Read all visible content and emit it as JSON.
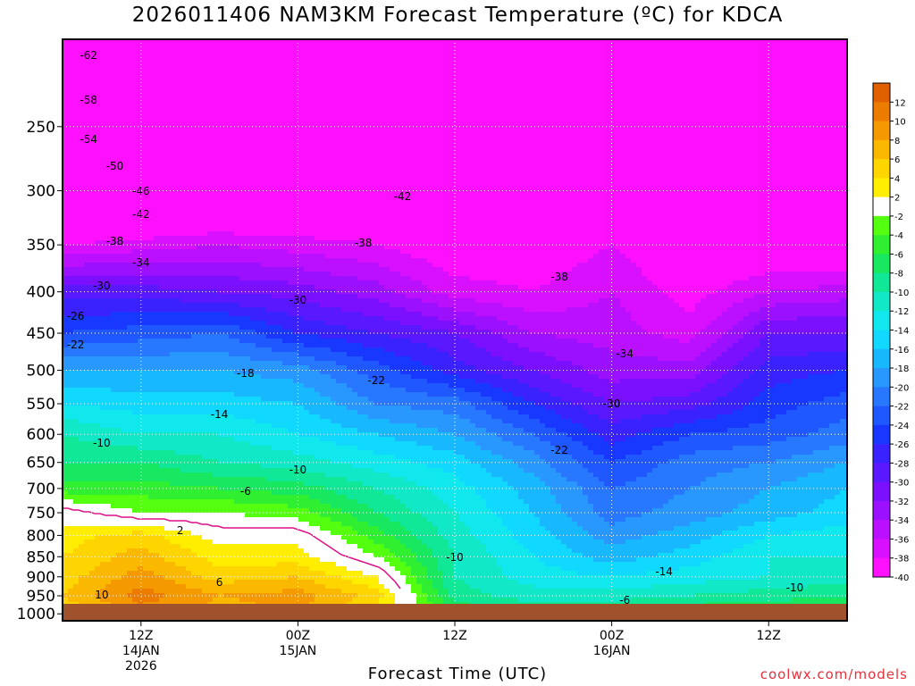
{
  "chart_data": {
    "type": "heatmap",
    "title": "2026011406 NAM3KM Forecast Temperature (ºC) for KDCA",
    "xlabel": "Forecast Time (UTC)",
    "ylabel": "",
    "y_axis": {
      "unit": "hPa",
      "scale": "log-pressure",
      "range": [
        1020,
        195
      ],
      "ticks": [
        250,
        300,
        350,
        400,
        450,
        500,
        550,
        600,
        650,
        700,
        750,
        800,
        850,
        900,
        950,
        1000
      ]
    },
    "x_axis": {
      "ticks": [
        {
          "hour": 6,
          "lines": [
            "12Z",
            "14JAN",
            "2026"
          ]
        },
        {
          "hour": 18,
          "lines": [
            "00Z",
            "15JAN"
          ]
        },
        {
          "hour": 30,
          "lines": [
            "12Z"
          ]
        },
        {
          "hour": 42,
          "lines": [
            "00Z",
            "16JAN"
          ]
        },
        {
          "hour": 54,
          "lines": [
            "12Z"
          ]
        }
      ],
      "range_hours": [
        0,
        60
      ]
    },
    "grid": "dotted",
    "colorbar": {
      "placement": "right",
      "labels": [
        "12",
        "10",
        "8",
        "6",
        "4",
        "2",
        "-2",
        "-4",
        "-6",
        "-8",
        "-10",
        "-12",
        "-14",
        "-16",
        "-18",
        "-20",
        "-22",
        "-24",
        "-26",
        "-28",
        "-30",
        "-32",
        "-34",
        "-36",
        "-38",
        "-40"
      ],
      "colors": [
        "#e06000",
        "#ec7c00",
        "#f49a00",
        "#fab800",
        "#ffd500",
        "#ffee00",
        "#ffffff",
        "#55ff10",
        "#30ee30",
        "#18e860",
        "#10e898",
        "#10e8c8",
        "#10e8ee",
        "#10d8ff",
        "#18b8ff",
        "#2898ff",
        "#2878ff",
        "#2058ff",
        "#1838ff",
        "#3a22ff",
        "#5a18ff",
        "#7a10ff",
        "#9a10ff",
        "#bb10ff",
        "#d810ff",
        "#ff10ff"
      ]
    },
    "ground_color": "#a0522d",
    "zero_line_color": "#dd1188",
    "columns_hours": [
      0,
      6,
      12,
      18,
      24,
      30,
      36,
      42,
      48,
      54,
      60
    ],
    "levels_hpa": [
      1000,
      950,
      900,
      850,
      800,
      750,
      700,
      650,
      600,
      550,
      500,
      450,
      400,
      350,
      300,
      250,
      200
    ],
    "temperature_c": [
      [
        4,
        9,
        7,
        8,
        4,
        -6,
        -8,
        -8,
        -6,
        -6,
        -4
      ],
      [
        6,
        11,
        8,
        9,
        5,
        -9,
        -11,
        -11,
        -10,
        -9,
        -8
      ],
      [
        5,
        9,
        5,
        6,
        2,
        -10,
        -13,
        -14,
        -13,
        -12,
        -11
      ],
      [
        4,
        7,
        3,
        3,
        -2,
        -10,
        -14,
        -17,
        -15,
        -12,
        -12
      ],
      [
        3,
        5,
        1,
        1,
        -5,
        -11,
        -15,
        -19,
        -17,
        -14,
        -13
      ],
      [
        1,
        -2,
        -2,
        -3,
        -8,
        -12,
        -16,
        -21,
        -19,
        -17,
        -15
      ],
      [
        -5,
        -5,
        -6,
        -7,
        -10,
        -13,
        -17,
        -22,
        -20,
        -18,
        -16
      ],
      [
        -8,
        -8,
        -10,
        -11,
        -13,
        -15,
        -19,
        -24,
        -21,
        -20,
        -18
      ],
      [
        -10,
        -12,
        -12,
        -14,
        -16,
        -18,
        -22,
        -27,
        -24,
        -23,
        -21
      ],
      [
        -14,
        -15,
        -15,
        -16,
        -20,
        -21,
        -26,
        -30,
        -29,
        -25,
        -23
      ],
      [
        -18,
        -18,
        -18,
        -19,
        -23,
        -27,
        -30,
        -33,
        -33,
        -27,
        -26
      ],
      [
        -24,
        -23,
        -22,
        -26,
        -28,
        -30,
        -34,
        -35,
        -37,
        -30,
        -30
      ],
      [
        -29,
        -29,
        -30,
        -31,
        -33,
        -37,
        -38,
        -36,
        -39,
        -36,
        -35
      ],
      [
        -38,
        -37,
        -36,
        -37,
        -38,
        -40,
        -40,
        -38,
        -41,
        -41,
        -42
      ],
      [
        -48,
        -46,
        -45,
        -44,
        -42,
        -43,
        -42,
        -44,
        -45,
        -46,
        -47
      ],
      [
        -56,
        -55,
        -54,
        -52,
        -50,
        -48,
        -48,
        -52,
        -54,
        -55,
        -56
      ],
      [
        -63,
        -62,
        -62,
        -60,
        -58,
        -56,
        -56,
        -58,
        -60,
        -62,
        -63
      ]
    ],
    "contour_labels": [
      "-62",
      "-58",
      "-54",
      "-50",
      "-46",
      "-42",
      "-38",
      "-34",
      "-30",
      "-26",
      "-22",
      "-18",
      "-14",
      "-10",
      "-6",
      "2",
      "6",
      "10",
      "-42",
      "-38",
      "-30",
      "-22",
      "-10",
      "-38",
      "-34",
      "-30",
      "-22",
      "-14",
      "-10",
      "-6",
      "-10"
    ]
  },
  "header": {
    "title": "2026011406 NAM3KM Forecast Temperature (ºC) for KDCA"
  },
  "footer": {
    "xlabel": "Forecast Time (UTC)",
    "credit": "coolwx.com/models"
  }
}
